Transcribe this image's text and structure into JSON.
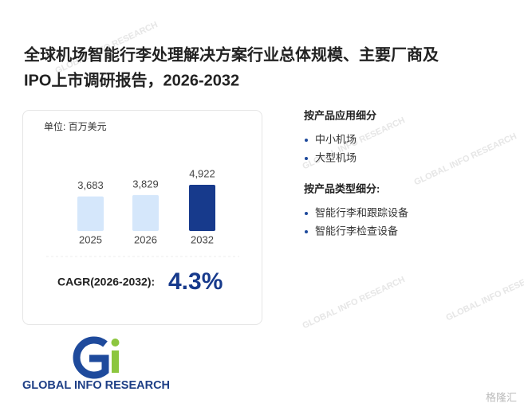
{
  "header": {
    "title_line1": "全球机场智能行李处理解决方案行业总体规模、主要厂商及",
    "title_line2": "IPO上市调研报告，2026-2032"
  },
  "chart_data": {
    "type": "bar",
    "unit": "单位: 百万美元",
    "categories": [
      "2025",
      "2026",
      "2032"
    ],
    "values": [
      3683,
      3829,
      4922
    ],
    "value_labels": [
      "3,683",
      "3,829",
      "4,922"
    ],
    "colors": [
      "#d5e7fb",
      "#d5e7fb",
      "#173a8c"
    ]
  },
  "cagr": {
    "label": "CAGR(2026-2032):",
    "value": "4.3%"
  },
  "segments": [
    {
      "title": "按产品应用细分",
      "items": [
        "中小机场",
        "大型机场"
      ]
    },
    {
      "title": "按产品类型细分:",
      "items": [
        "智能行李和跟踪设备",
        "智能行李检查设备"
      ]
    }
  ],
  "logo": {
    "text": "GLOBAL INFO RESEARCH"
  },
  "source_mark": "格隆汇"
}
